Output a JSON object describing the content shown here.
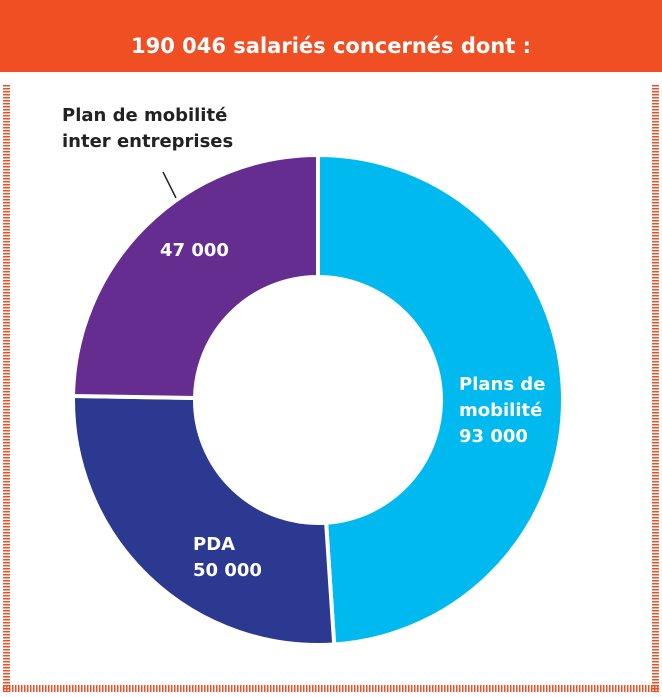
{
  "chart_data": {
    "type": "donut",
    "title": "190 046 salariés concernés dont :",
    "categories": [
      "Plans de mobilité",
      "PDA",
      "Plan de mobilité inter entreprises"
    ],
    "values": [
      93000,
      50000,
      47000
    ],
    "value_labels": [
      "93 000",
      "50 000",
      "47 000"
    ],
    "colors": [
      "#00b9ef",
      "#2b3990",
      "#662d91"
    ]
  }
}
